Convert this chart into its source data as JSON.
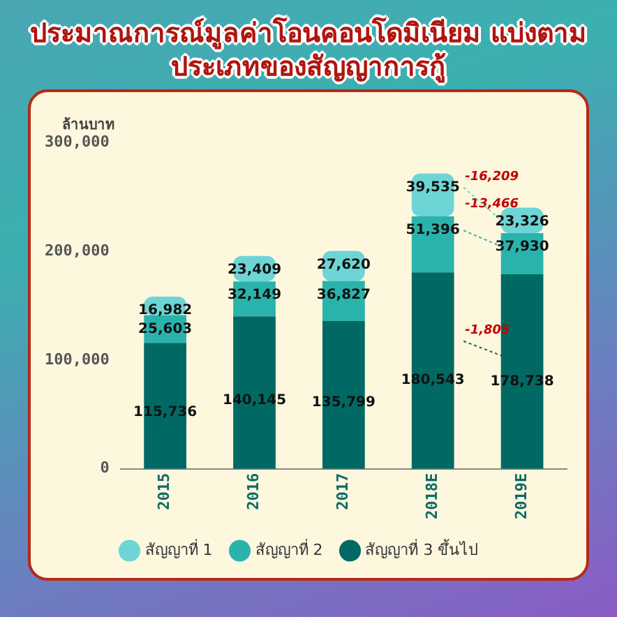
{
  "chart_data": {
    "type": "bar",
    "title": "ประมาณการณ์มูลค่าโอนคอนโดมิเนียม แบ่งตามประเภทของสัญญาการกู้",
    "ylabel": "ล้านบาท",
    "categories": [
      "2015",
      "2016",
      "2017",
      "2018E",
      "2019E"
    ],
    "stacked": true,
    "legend": "bottom",
    "grid": false,
    "ylim": [
      0,
      300000
    ],
    "yticks": [
      {
        "value": 0,
        "label": "0"
      },
      {
        "value": 100000,
        "label": "100,000"
      },
      {
        "value": 200000,
        "label": "200,000"
      },
      {
        "value": 300000,
        "label": "300,000"
      }
    ],
    "series": [
      {
        "name": "สัญญาที่ 3 ขึ้นไป",
        "color": "#016963",
        "values": [
          115736,
          140145,
          135799,
          180543,
          178738
        ],
        "value_labels": [
          "115,736",
          "140,145",
          "135,799",
          "180,543",
          "178,738"
        ]
      },
      {
        "name": "สัญญาที่ 2",
        "color": "#2ab3ac",
        "values": [
          25603,
          32149,
          36827,
          51396,
          37930
        ],
        "value_labels": [
          "25,603",
          "32,149",
          "36,827",
          "51,396",
          "37,930"
        ]
      },
      {
        "name": "สัญญาที่ 1",
        "color": "#6dd5d5",
        "values": [
          16982,
          23409,
          27620,
          39535,
          23326
        ],
        "value_labels": [
          "16,982",
          "23,409",
          "27,620",
          "39,535",
          "23,326"
        ]
      }
    ],
    "annotations": [
      "-1,805",
      "-13,466",
      "-16,209"
    ]
  }
}
